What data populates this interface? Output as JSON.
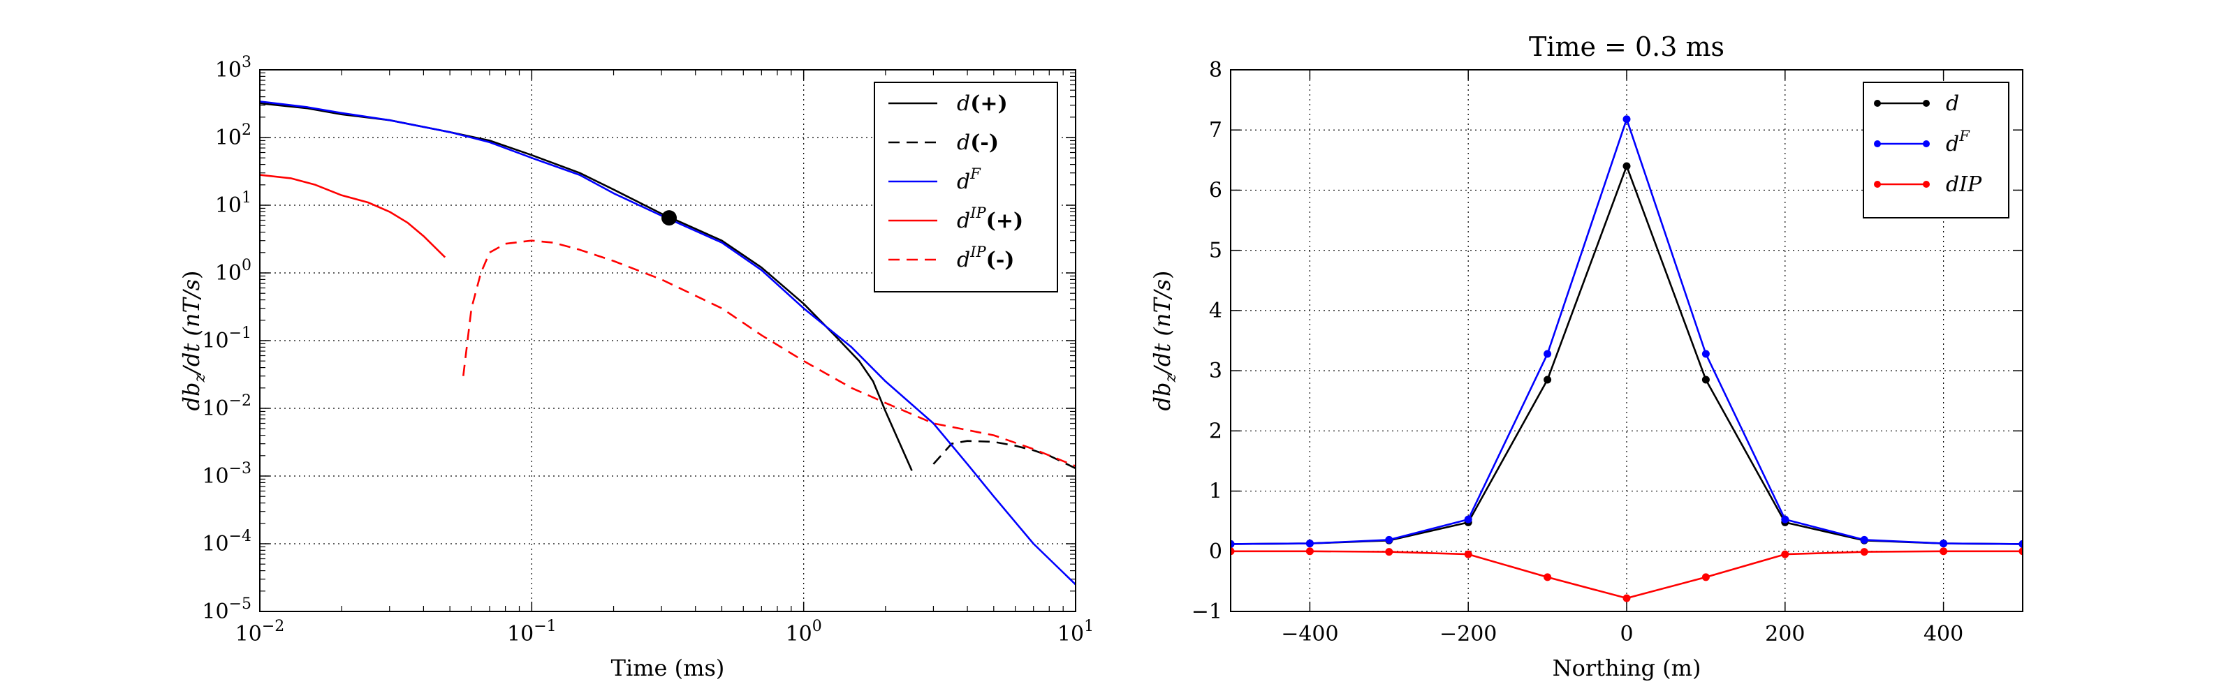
{
  "chart_data": [
    {
      "type": "line",
      "title": "",
      "xlabel": "Time (ms)",
      "ylabel": "db_z/dt (nT/s)",
      "ylabel_parts": [
        "db",
        "z",
        "/dt (",
        "nT/s",
        ")"
      ],
      "xscale": "log",
      "yscale": "log",
      "xlim": [
        0.01,
        10
      ],
      "ylim": [
        1e-05,
        1000
      ],
      "grid": true,
      "legend_position": "upper-right",
      "x_ticks": [
        {
          "value": 0.01,
          "base": "10",
          "exp": "−2"
        },
        {
          "value": 0.1,
          "base": "10",
          "exp": "−1"
        },
        {
          "value": 1,
          "base": "10",
          "exp": "0"
        },
        {
          "value": 10,
          "base": "10",
          "exp": "1"
        }
      ],
      "y_ticks": [
        {
          "value": 1e-05,
          "base": "10",
          "exp": "−5"
        },
        {
          "value": 0.0001,
          "base": "10",
          "exp": "−4"
        },
        {
          "value": 0.001,
          "base": "10",
          "exp": "−3"
        },
        {
          "value": 0.01,
          "base": "10",
          "exp": "−2"
        },
        {
          "value": 0.1,
          "base": "10",
          "exp": "−1"
        },
        {
          "value": 1,
          "base": "10",
          "exp": "0"
        },
        {
          "value": 10,
          "base": "10",
          "exp": "1"
        },
        {
          "value": 100,
          "base": "10",
          "exp": "2"
        },
        {
          "value": 1000,
          "base": "10",
          "exp": "3"
        }
      ],
      "series": [
        {
          "name": "d(+)",
          "legend_main": "d",
          "legend_sup": "",
          "legend_suffix": "(+)",
          "color": "#000000",
          "dash": "solid",
          "x": [
            0.01,
            0.015,
            0.02,
            0.03,
            0.05,
            0.07,
            0.1,
            0.15,
            0.2,
            0.3,
            0.5,
            0.7,
            1.0,
            1.3,
            1.6,
            1.8,
            2.0,
            2.5
          ],
          "y": [
            320,
            270,
            220,
            180,
            120,
            90,
            55,
            30,
            17,
            7.5,
            3.0,
            1.2,
            0.35,
            0.12,
            0.05,
            0.025,
            0.009,
            0.0012
          ]
        },
        {
          "name": "d(-)",
          "legend_main": "d",
          "legend_sup": "",
          "legend_suffix": "(-)",
          "color": "#000000",
          "dash": "dashed",
          "x": [
            3.0,
            3.5,
            4.0,
            5.0,
            6.0,
            7.0,
            8.0,
            10.0
          ],
          "y": [
            0.0015,
            0.003,
            0.0033,
            0.0032,
            0.0028,
            0.0024,
            0.002,
            0.0013
          ]
        },
        {
          "name": "d^F",
          "legend_main": "d",
          "legend_sup": "F",
          "legend_suffix": "",
          "color": "#0000ff",
          "dash": "solid",
          "x": [
            0.01,
            0.015,
            0.02,
            0.03,
            0.05,
            0.07,
            0.1,
            0.15,
            0.2,
            0.3,
            0.5,
            0.7,
            1.0,
            1.5,
            2.0,
            3.0,
            4.0,
            5.0,
            7.0,
            10.0
          ],
          "y": [
            340,
            280,
            230,
            180,
            120,
            85,
            50,
            28,
            15,
            7,
            2.8,
            1.1,
            0.3,
            0.08,
            0.025,
            0.006,
            0.0015,
            0.0005,
            0.0001,
            2.5e-05
          ]
        },
        {
          "name": "d^IP(+)",
          "legend_main": "d",
          "legend_sup": "IP",
          "legend_suffix": "(+)",
          "color": "#ff0000",
          "dash": "solid",
          "x": [
            0.01,
            0.013,
            0.016,
            0.02,
            0.025,
            0.03,
            0.035,
            0.04,
            0.048
          ],
          "y": [
            28,
            25,
            20,
            14,
            11,
            8,
            5.5,
            3.5,
            1.7
          ]
        },
        {
          "name": "d^IP(-)",
          "legend_main": "d",
          "legend_sup": "IP",
          "legend_suffix": "(-)",
          "color": "#ff0000",
          "dash": "dashed",
          "x": [
            0.056,
            0.06,
            0.065,
            0.07,
            0.08,
            0.1,
            0.12,
            0.15,
            0.2,
            0.3,
            0.5,
            0.7,
            1.0,
            1.5,
            2.0,
            3.0,
            5.0,
            7.0,
            10.0
          ],
          "y": [
            0.03,
            0.3,
            1.0,
            2.0,
            2.7,
            3.0,
            2.8,
            2.2,
            1.5,
            0.8,
            0.3,
            0.12,
            0.05,
            0.02,
            0.012,
            0.006,
            0.004,
            0.0025,
            0.0014
          ]
        }
      ],
      "marker": {
        "x": 0.32,
        "y": 6.5,
        "color": "#000000"
      }
    },
    {
      "type": "line",
      "title": "Time = 0.3 ms",
      "xlabel": "Northing (m)",
      "ylabel": "db_z/dt (nT/s)",
      "ylabel_parts": [
        "db",
        "z",
        "/dt (",
        "nT/s",
        ")"
      ],
      "xscale": "linear",
      "yscale": "linear",
      "xlim": [
        -500,
        500
      ],
      "ylim": [
        -1,
        8
      ],
      "grid": true,
      "legend_position": "upper-right",
      "x_ticks": [
        {
          "value": -400,
          "label": "−400"
        },
        {
          "value": -200,
          "label": "−200"
        },
        {
          "value": 0,
          "label": "0"
        },
        {
          "value": 200,
          "label": "200"
        },
        {
          "value": 400,
          "label": "400"
        }
      ],
      "y_ticks": [
        {
          "value": -1,
          "label": "−1"
        },
        {
          "value": 0,
          "label": "0"
        },
        {
          "value": 1,
          "label": "1"
        },
        {
          "value": 2,
          "label": "2"
        },
        {
          "value": 3,
          "label": "3"
        },
        {
          "value": 4,
          "label": "4"
        },
        {
          "value": 5,
          "label": "5"
        },
        {
          "value": 6,
          "label": "6"
        },
        {
          "value": 7,
          "label": "7"
        },
        {
          "value": 8,
          "label": "8"
        }
      ],
      "series": [
        {
          "name": "d",
          "legend_main": "d",
          "legend_sup": "",
          "legend_suffix": "",
          "color": "#000000",
          "x": [
            -500,
            -400,
            -300,
            -200,
            -100,
            0,
            100,
            200,
            300,
            400,
            500
          ],
          "y": [
            0.12,
            0.13,
            0.18,
            0.48,
            2.85,
            6.4,
            2.85,
            0.48,
            0.18,
            0.13,
            0.12
          ]
        },
        {
          "name": "d^F",
          "legend_main": "d",
          "legend_sup": "F",
          "legend_suffix": "",
          "color": "#0000ff",
          "x": [
            -500,
            -400,
            -300,
            -200,
            -100,
            0,
            100,
            200,
            300,
            400,
            500
          ],
          "y": [
            0.12,
            0.13,
            0.19,
            0.53,
            3.28,
            7.18,
            3.28,
            0.53,
            0.19,
            0.13,
            0.12
          ]
        },
        {
          "name": "dIP",
          "legend_main": "dIP",
          "legend_sup": "",
          "legend_suffix": "",
          "color": "#ff0000",
          "x": [
            -500,
            -400,
            -300,
            -200,
            -100,
            0,
            100,
            200,
            300,
            400,
            500
          ],
          "y": [
            0.0,
            0.0,
            -0.01,
            -0.05,
            -0.43,
            -0.78,
            -0.43,
            -0.05,
            -0.01,
            0.0,
            0.0
          ]
        }
      ]
    }
  ]
}
